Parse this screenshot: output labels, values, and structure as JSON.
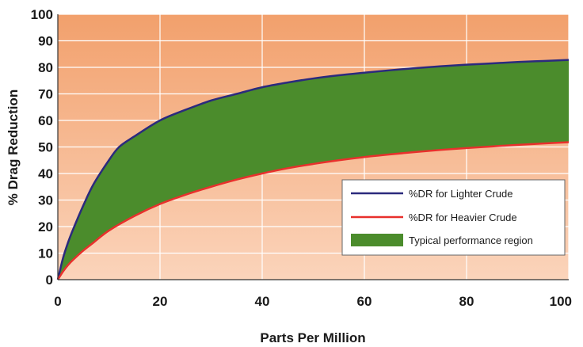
{
  "chart_data": {
    "type": "area",
    "title": "",
    "xlabel": "Parts Per Million",
    "ylabel": "% Drag Reduction",
    "xlim": [
      0,
      100
    ],
    "ylim": [
      0,
      100
    ],
    "x_ticks": [
      0,
      20,
      40,
      60,
      80,
      100
    ],
    "y_ticks": [
      0,
      10,
      20,
      30,
      40,
      50,
      60,
      70,
      80,
      90,
      100
    ],
    "grid": true,
    "legend_position": "bottom-right",
    "series": [
      {
        "name": "%DR for Lighter Crude",
        "color": "#2b2a7d",
        "x": [
          0,
          1,
          2,
          3,
          5,
          7,
          10,
          12,
          15,
          20,
          25,
          30,
          35,
          40,
          45,
          50,
          55,
          60,
          65,
          70,
          75,
          80,
          85,
          90,
          95,
          100
        ],
        "y": [
          0,
          8,
          14,
          19,
          28,
          36,
          45,
          50,
          54,
          60,
          64,
          67.5,
          70,
          72.5,
          74.3,
          75.8,
          77,
          78,
          78.9,
          79.7,
          80.4,
          81,
          81.5,
          82,
          82.4,
          82.8
        ]
      },
      {
        "name": "%DR for Heavier Crude",
        "color": "#e8302c",
        "x": [
          0,
          1,
          2,
          3,
          5,
          7,
          10,
          15,
          20,
          25,
          30,
          35,
          40,
          45,
          50,
          55,
          60,
          65,
          70,
          75,
          80,
          85,
          90,
          95,
          100
        ],
        "y": [
          0,
          3,
          5.5,
          7.5,
          11,
          14,
          18.5,
          24,
          28.5,
          32,
          35,
          37.7,
          40,
          42,
          43.6,
          45,
          46.2,
          47.2,
          48.1,
          48.9,
          49.6,
          50.2,
          50.8,
          51.3,
          51.8
        ]
      }
    ],
    "region": {
      "name": "Typical performance region",
      "color": "#4b8c2c"
    }
  }
}
